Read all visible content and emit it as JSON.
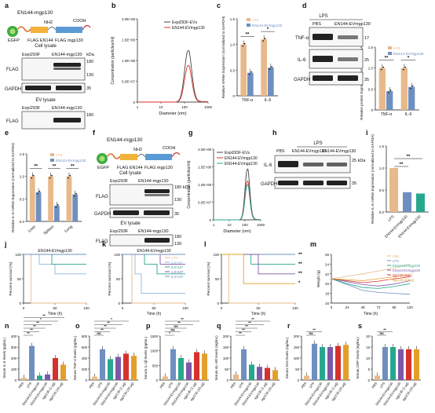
{
  "panel_letters": {
    "a": "a",
    "b": "b",
    "c": "c",
    "d": "d",
    "e": "e",
    "f": "f",
    "g": "g",
    "h": "h",
    "i": "i",
    "j": "j",
    "k": "k",
    "l": "l",
    "m": "m",
    "n": "n",
    "o": "o",
    "p": "p",
    "q": "q",
    "r": "r",
    "s": "s"
  },
  "colors": {
    "ctrl": "#e8b98a",
    "ev": "#6f8fc0",
    "grey": "#444444",
    "gapdh_band": "#2c2c2c",
    "frag_teal": "#27a88e",
    "frag_red": "#d6322d",
    "frag_gold": "#e2a02b",
    "frag_purple": "#7d58a8"
  },
  "construct": {
    "title": "EN144-mgp130",
    "nh2": "NH2",
    "cooh": "COOH",
    "labels": [
      "EGFP",
      "FLAG EN144",
      "FLAG mgp130"
    ],
    "f_labels": [
      "EGFP",
      "FLAG EN144",
      "FLAG mgp130"
    ]
  },
  "blots": {
    "a": {
      "cell_lysate": "Cell lysate",
      "ev_lysate": "EV lysate",
      "lanes": [
        "Expi293F",
        "EN144-mgp130"
      ],
      "rows": [
        "FLAG",
        "GAPDH",
        "FLAG"
      ],
      "kda_unit": "kDa",
      "markers": [
        "180",
        "130",
        "35",
        "180"
      ]
    },
    "d": {
      "treat": "LPS",
      "lanes": [
        "PBS",
        "EN144-EVmgp130"
      ],
      "rows": [
        "TNF-α",
        "IL-6",
        "GAPDH"
      ],
      "markers": [
        "17",
        "25",
        "35"
      ]
    },
    "f": {
      "cell_lysate": "Cell lysate",
      "ev_lysate": "EV lysate",
      "lanes": [
        "Expi293F",
        "EN144-mgp130"
      ],
      "rows": [
        "FLAG",
        "GAPDH",
        "FLAG"
      ],
      "markers": [
        "180 kDa",
        "130",
        "35",
        "180",
        "130"
      ]
    },
    "h": {
      "treat": "LPS",
      "lanes": [
        "PBS",
        "EN144-EVmgp130",
        "EN144-EVmgp130"
      ],
      "rows": [
        "IL-6",
        "GAPDH"
      ],
      "markers": [
        "25 kDa",
        "35"
      ]
    }
  },
  "panel_b": {
    "type": "line",
    "ylabel": "Concentration (particles/ml)",
    "xlabel": "Diameter (nm)",
    "yticks": [
      "2.0E+08",
      "1.5E+08",
      "1.0E+08",
      "5.0E+07",
      "0"
    ],
    "xticks": [
      "1",
      "10",
      "100",
      "1000"
    ],
    "series": [
      {
        "name": "Expi293F-EVs"
      },
      {
        "name": "EN144-EVmgp130"
      }
    ]
  },
  "panel_g": {
    "type": "line",
    "ylabel": "Concentration (particles/ml)",
    "xlabel": "Diameter (nm)",
    "yticks": [
      "2.0E+08",
      "1.5E+08",
      "1.0E+08",
      "5.0E+07",
      "0"
    ],
    "xticks": [
      "1",
      "10",
      "100",
      "1000"
    ],
    "series": [
      {
        "name": "Expi293F-EVs"
      },
      {
        "name": "EN144-EVmgp130"
      },
      {
        "name": "EN144-EVmgp130"
      }
    ]
  },
  "panel_c": {
    "type": "bar",
    "ylabel": "Relative mRNA Expression (normalized to GAPDH)",
    "categories": [
      "TNF-α",
      "IL-6"
    ],
    "series": [
      {
        "name": "LPS",
        "values": [
          1.0,
          1.1
        ]
      },
      {
        "name": "EN144-EVmgp130",
        "values": [
          0.45,
          0.55
        ]
      }
    ],
    "ylim": [
      0,
      1.5
    ],
    "yticks": [
      "1.5",
      "1.0",
      "0.5",
      "0"
    ],
    "stars": [
      "**",
      "*"
    ]
  },
  "panel_d": {
    "type": "bar",
    "ylabel": "Relative protein Expression (normalized to GAPDH)",
    "categories": [
      "TNF-α",
      "IL-6"
    ],
    "series": [
      {
        "name": "LPS",
        "values": [
          1.0,
          1.0
        ]
      },
      {
        "name": "EN144-EVmgp130",
        "values": [
          0.45,
          0.55
        ]
      }
    ],
    "ylim": [
      0,
      1.5
    ],
    "yticks": [
      "1.5",
      "1.0",
      "0.5",
      "0"
    ],
    "stars": [
      "**",
      "*"
    ]
  },
  "panel_e": {
    "type": "bar",
    "ylabel": "Relative IL-6 mRNA Expression (normalized to GAPDH)",
    "categories": [
      "Liver",
      "Spleen",
      "Lung"
    ],
    "series": [
      {
        "name": "LPS",
        "values": [
          1.0,
          1.0,
          1.0
        ]
      },
      {
        "name": "EN144-EVmgp130",
        "values": [
          0.65,
          0.35,
          0.6
        ]
      }
    ],
    "ylim": [
      0,
      1.5
    ],
    "yticks": [
      "1.5",
      "1.0",
      "0.5",
      "0.0"
    ],
    "stars": [
      "**",
      "**",
      "**"
    ]
  },
  "panel_i": {
    "type": "bar",
    "ylabel": "Relative IL-6 mRNA Expression (normalized to GAPDH)",
    "categories": [
      "LPS",
      "EN144-EVmgp130",
      "EN144-EVmgp130"
    ],
    "values": [
      1.0,
      0.45,
      0.42
    ],
    "ylim": [
      0,
      1.5
    ],
    "yticks": [
      "1.5",
      "1.0",
      "0.5",
      "0.0"
    ],
    "stars": [
      "**",
      "**"
    ]
  },
  "panel_j": {
    "type": "line",
    "title": "EN144-EVmgp130",
    "ylabel": "Percent survival (%)",
    "xlabel": "Time (h)",
    "yticks": [
      "100",
      "50",
      "0"
    ],
    "xticks": [
      "0",
      "50",
      "100"
    ]
  },
  "panel_k": {
    "type": "line",
    "title": "EN144-EVmgp130",
    "ylabel": "Percent survival (%)",
    "xlabel": "Time (h)",
    "yticks": [
      "100",
      "50",
      "0"
    ],
    "xticks": [
      "0",
      "50",
      "100"
    ],
    "legend": [
      "LPS",
      "1.0×10⁷",
      "5.0×10⁷",
      "1.0×10⁸",
      "5.0×10⁸"
    ]
  },
  "panel_l": {
    "type": "line",
    "ylabel": "Percent survival (%)",
    "xlabel": "Time (h)",
    "yticks": [
      "100",
      "50",
      "0"
    ],
    "xticks": [
      "0",
      "50",
      "100"
    ],
    "stars": [
      "**",
      "**",
      "**",
      "*"
    ]
  },
  "panel_m": {
    "type": "line",
    "ylabel": "Weight (g)",
    "xlabel": "Time (h)",
    "yticks": [
      "26",
      "24",
      "22",
      "20",
      "18",
      "16"
    ],
    "xticks": [
      "0",
      "24",
      "48",
      "72",
      "96",
      "120"
    ],
    "legend": [
      "PBS",
      "LPS",
      "EN144-EVmgp130",
      "EN144-EVmgp130",
      "sgp130 (1μg)",
      "sgp130 (10μg)"
    ]
  },
  "bottom_groups": [
    "PBS",
    "LPS",
    "EN144-EVmgp130",
    "EN144-EVmgp130",
    "sgp130 (1 μg)",
    "sgp130 (10 μg)"
  ],
  "panel_n": {
    "ylabel": "Serum IL-6 levels (pg/mL)",
    "yticks": [
      "400",
      "300",
      "200",
      "100",
      "0"
    ],
    "values": [
      20,
      310,
      40,
      50,
      200,
      140
    ],
    "stars": [
      "**",
      "**",
      "**",
      "**",
      "*",
      "**"
    ]
  },
  "panel_o": {
    "ylabel": "Serum TNF-α levels (pg/mL)",
    "yticks": [
      "800",
      "600",
      "400",
      "200",
      "0"
    ],
    "values": [
      60,
      560,
      380,
      420,
      480,
      440
    ],
    "stars": [
      "ns",
      "**",
      "**",
      "**",
      "*"
    ]
  },
  "panel_p": {
    "ylabel": "Serum IL-1β levels (pg/mL)",
    "yticks": [
      "1500",
      "1000",
      "500",
      "0"
    ],
    "values": [
      120,
      1050,
      750,
      600,
      950,
      900
    ],
    "stars": [
      "*",
      "ns",
      "ns",
      "**",
      "**"
    ]
  },
  "panel_q": {
    "ylabel": "Serum sIL-6R levels (ng/mL)",
    "yticks": [
      "200",
      "150",
      "100",
      "50",
      "0"
    ],
    "values": [
      25,
      140,
      70,
      60,
      55,
      45
    ],
    "stars": [
      "**",
      "**",
      "**",
      "**",
      "**"
    ]
  },
  "panel_r": {
    "ylabel": "Serum SAA levels (ng/mL)",
    "yticks": [
      "200",
      "150",
      "100",
      "50",
      "0"
    ],
    "values": [
      20,
      165,
      150,
      150,
      155,
      160
    ],
    "stars": [
      "ns",
      "**"
    ]
  },
  "panel_s": {
    "ylabel": "Serum CRP levels (ng/mL)",
    "yticks": [
      "20",
      "15",
      "10",
      "5",
      "0"
    ],
    "values": [
      2,
      15,
      15,
      14,
      14,
      14
    ],
    "stars": [
      "ns",
      "**"
    ]
  }
}
